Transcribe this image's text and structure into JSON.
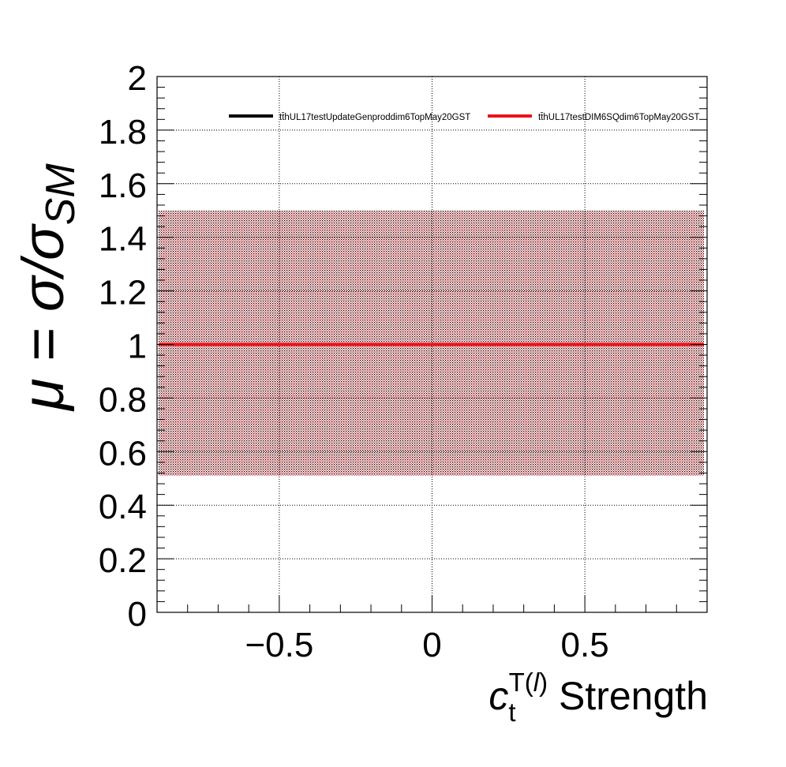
{
  "chart_data": {
    "type": "line",
    "xlabel": {
      "symbol": "c",
      "subscript": "t",
      "superscript_main": "T(",
      "superscript_italic": "l",
      "superscript_close": ")",
      "suffix": " Strength"
    },
    "ylabel": {
      "prefix": "μ = σ/σ",
      "subscript": "SM"
    },
    "xlim": [
      -0.9,
      0.9
    ],
    "ylim": [
      0,
      2
    ],
    "x_ticks": [
      -0.5,
      0,
      0.5
    ],
    "x_tick_labels": [
      "−0.5",
      "0",
      "0.5"
    ],
    "y_ticks": [
      0,
      0.2,
      0.4,
      0.6,
      0.8,
      1,
      1.2,
      1.4,
      1.6,
      1.8,
      2
    ],
    "y_tick_labels": [
      "0",
      "0.2",
      "0.4",
      "0.6",
      "0.8",
      "1",
      "1.2",
      "1.4",
      "1.6",
      "1.8",
      "2"
    ],
    "grid": true,
    "legend_position": "top",
    "series": [
      {
        "name": "tt̄hUL17testUpdateGenproddim6TopMay20GST",
        "color": "#000000",
        "x": [
          -0.9,
          0.9
        ],
        "y": [
          1.0,
          1.0
        ],
        "band_low": [
          0.51,
          0.51
        ],
        "band_high": [
          1.5,
          1.5
        ]
      },
      {
        "name": "tt̄hUL17testDIM6SQdim6TopMay20GST",
        "color": "#e8141b",
        "x": [
          -0.9,
          0.9
        ],
        "y": [
          1.0,
          1.0
        ],
        "band_low": [
          0.51,
          0.51
        ],
        "band_high": [
          1.5,
          1.5
        ]
      }
    ]
  }
}
